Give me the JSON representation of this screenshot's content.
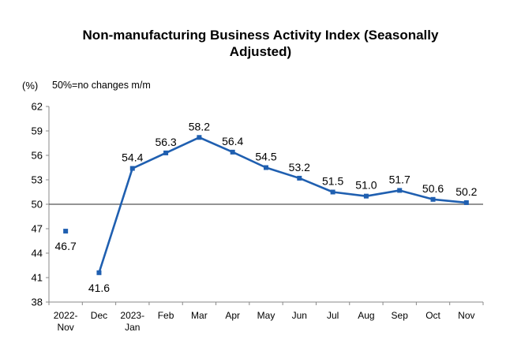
{
  "title_line1": "Non-manufacturing Business Activity Index (Seasonally",
  "title_line2": "Adjusted)",
  "y_unit": "(%)",
  "note": "50%=no changes m/m",
  "chart_data": {
    "type": "line",
    "title": "Non-manufacturing Business Activity Index (Seasonally Adjusted)",
    "categories": [
      [
        "2022-",
        "Nov"
      ],
      [
        "Dec"
      ],
      [
        "2023-",
        "Jan"
      ],
      [
        "Feb"
      ],
      [
        "Mar"
      ],
      [
        "Apr"
      ],
      [
        "May"
      ],
      [
        "Jun"
      ],
      [
        "Jul"
      ],
      [
        "Aug"
      ],
      [
        "Sep"
      ],
      [
        "Oct"
      ],
      [
        "Nov"
      ]
    ],
    "values": [
      46.7,
      41.6,
      54.4,
      56.3,
      58.2,
      56.4,
      54.5,
      53.2,
      51.5,
      51.0,
      51.7,
      50.6,
      50.2
    ],
    "value_labels": [
      "46.7",
      "41.6",
      "54.4",
      "56.3",
      "58.2",
      "56.4",
      "54.5",
      "53.2",
      "51.5",
      "51.0",
      "51.7",
      "50.6",
      "50.2"
    ],
    "label_position": [
      "below",
      "below",
      "above",
      "above",
      "above",
      "above",
      "above",
      "above",
      "above",
      "above",
      "above",
      "above",
      "above"
    ],
    "yticks": [
      38,
      41,
      44,
      47,
      50,
      53,
      56,
      59,
      62
    ],
    "ylim": [
      38,
      62
    ],
    "reference_line": 50,
    "line_color": "#1f5fb0",
    "reference_color": "#555555",
    "axis_color": "#888888",
    "gap_before_index": 1
  }
}
